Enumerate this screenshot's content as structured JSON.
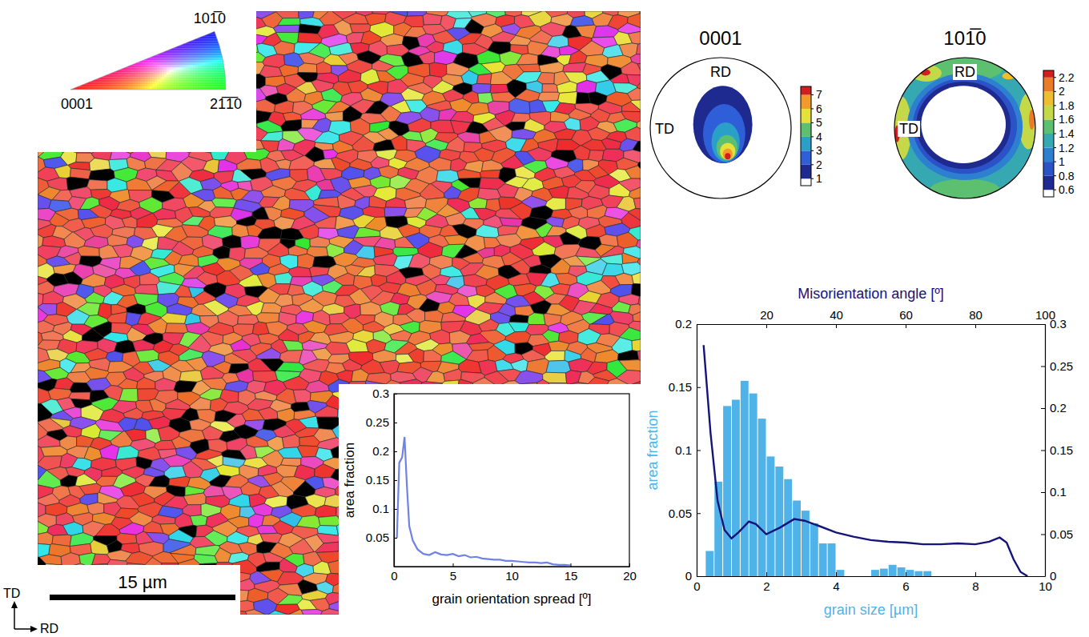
{
  "chart_data": [
    {
      "type": "orientation_map",
      "xlim": [
        0,
        48.7
      ],
      "scale_bar": {
        "value": 15,
        "label": "15 µm"
      },
      "axis_labels": [
        "TD",
        "RD"
      ],
      "color_key": [
        "101̅0",
        "0001",
        "21̅1̅0"
      ]
    },
    {
      "type": "line",
      "xlabel": "grain orientation spread [º]",
      "ylabel": "area fraction",
      "color": "#6f82e6",
      "x": [
        0.25,
        0.45,
        0.7,
        0.9,
        1.1,
        1.3,
        1.6,
        2,
        2.5,
        3,
        3.5,
        4,
        4.5,
        5,
        5.5,
        6,
        6.5,
        7,
        7.5,
        8,
        8.5,
        9,
        9.5,
        10,
        10.5,
        11,
        11.5,
        12,
        12.5,
        13,
        13.5,
        14,
        14.5,
        15
      ],
      "values": [
        0.05,
        0.18,
        0.19,
        0.225,
        0.14,
        0.07,
        0.045,
        0.03,
        0.022,
        0.02,
        0.025,
        0.021,
        0.02,
        0.022,
        0.018,
        0.02,
        0.016,
        0.017,
        0.014,
        0.013,
        0.012,
        0.012,
        0.01,
        0.01,
        0.009,
        0.008,
        0.007,
        0.007,
        0.006,
        0.007,
        0.004,
        0.003,
        0.003,
        0.002
      ],
      "xlim": [
        0,
        20
      ],
      "xticks": [
        0,
        5,
        10,
        15,
        20
      ],
      "ylim": [
        0,
        0.3
      ],
      "yticks": [
        0.05,
        0.1,
        0.15,
        0.2,
        0.25,
        0.3
      ]
    },
    {
      "type": "pole_figure",
      "title": "0001",
      "labels": [
        "RD",
        "TD"
      ],
      "contours": [
        {
          "level": 1,
          "cx": 0.03,
          "cy": 0.05,
          "rx": 0.42,
          "ry": 0.55
        },
        {
          "level": 2,
          "cx": 0.05,
          "cy": -0.08,
          "rx": 0.3,
          "ry": 0.42
        },
        {
          "level": 3,
          "cx": 0.07,
          "cy": -0.2,
          "rx": 0.2,
          "ry": 0.28
        },
        {
          "level": 4,
          "cx": 0.09,
          "cy": -0.28,
          "rx": 0.15,
          "ry": 0.18
        },
        {
          "level": 5,
          "cx": 0.1,
          "cy": -0.33,
          "rx": 0.11,
          "ry": 0.12
        },
        {
          "level": 6,
          "cx": 0.1,
          "cy": -0.37,
          "rx": 0.07,
          "ry": 0.08
        },
        {
          "level": 7,
          "cx": 0.1,
          "cy": -0.4,
          "rx": 0.04,
          "ry": 0.045
        }
      ],
      "colorbar": {
        "range": [
          0.5,
          7.6
        ],
        "ticks": [
          1,
          2,
          3,
          4,
          5,
          6,
          7
        ]
      }
    },
    {
      "type": "pole_figure",
      "title": "101̅0",
      "labels": [
        "RD",
        "TD"
      ],
      "contours": [
        {
          "level": 1.2,
          "cx": 0,
          "cy": 0,
          "rx": 1,
          "ry": 1
        },
        {
          "level": 1.4,
          "cx": 0,
          "cy": 0.86,
          "rx": 0.55,
          "ry": 0.2
        },
        {
          "level": 1.4,
          "cx": 0,
          "cy": -0.88,
          "rx": 0.5,
          "ry": 0.16
        },
        {
          "level": 1.6,
          "cx": -0.9,
          "cy": 0,
          "rx": 0.14,
          "ry": 0.45
        },
        {
          "level": 1.6,
          "cx": 0.9,
          "cy": 0.1,
          "rx": 0.14,
          "ry": 0.4
        },
        {
          "level": 1.6,
          "cx": -0.55,
          "cy": 0.78,
          "rx": 0.22,
          "ry": 0.12
        },
        {
          "level": 1,
          "cx": 0,
          "cy": 0.02,
          "rx": 0.82,
          "ry": 0.76
        },
        {
          "level": 0.8,
          "cx": 0,
          "cy": 0.03,
          "rx": 0.74,
          "ry": 0.68
        },
        {
          "level": 0.6,
          "cx": -0.02,
          "cy": 0.04,
          "rx": 0.67,
          "ry": 0.62
        },
        {
          "level": 0.5,
          "cx": -0.02,
          "cy": 0.05,
          "rx": 0.6,
          "ry": 0.55
        },
        {
          "level": 2.2,
          "cx": -0.56,
          "cy": 0.79,
          "rx": 0.07,
          "ry": 0.045
        },
        {
          "level": 2.2,
          "cx": -0.96,
          "cy": -0.08,
          "rx": 0.035,
          "ry": 0.12
        },
        {
          "level": 1.8,
          "cx": 0.62,
          "cy": 0.74,
          "rx": 0.09,
          "ry": 0.05
        },
        {
          "level": 2,
          "cx": 0.95,
          "cy": 0.12,
          "rx": 0.04,
          "ry": 0.14
        }
      ],
      "colorbar": {
        "range": [
          0.5,
          2.3
        ],
        "ticks": [
          0.6,
          0.8,
          1,
          1.2,
          1.4,
          1.6,
          1.8,
          2,
          2.2
        ]
      }
    },
    {
      "type": "histogram",
      "xlabel": "grain size [µm]",
      "ylabel": "area fraction",
      "color": "#4fb3ea",
      "bins": [
        0.25,
        0.5,
        0.75,
        1,
        1.25,
        1.5,
        1.75,
        2,
        2.25,
        2.5,
        2.75,
        3,
        3.25,
        3.5,
        3.75,
        4,
        4.25,
        4.5,
        4.75,
        5,
        5.25,
        5.5,
        5.75,
        6,
        6.25,
        6.5,
        6.75
      ],
      "values": [
        0.02,
        0.075,
        0.135,
        0.14,
        0.155,
        0.145,
        0.125,
        0.095,
        0.087,
        0.077,
        0.06,
        0.052,
        0.042,
        0.026,
        0.026,
        0.005,
        0,
        0,
        0,
        0.005,
        0.006,
        0.009,
        0.007,
        0.005,
        0.004,
        0.004
      ],
      "xlim": [
        0,
        10
      ],
      "xticks": [
        0,
        2,
        4,
        6,
        8,
        10
      ],
      "ylim": [
        0,
        0.2
      ],
      "yticks": [
        0,
        0.05,
        0.1,
        0.15,
        0.2
      ],
      "x2label": "Misorientation angle [º]",
      "x2lim": [
        0,
        100
      ],
      "x2ticks": [
        20,
        40,
        60,
        80,
        100
      ],
      "y2lim": [
        0,
        0.3
      ],
      "y2ticks": [
        0,
        0.05,
        0.1,
        0.15,
        0.2,
        0.25,
        0.3
      ],
      "series": [
        {
          "type": "line",
          "axis": "y2",
          "color": "#14147a",
          "x": [
            2,
            4,
            6,
            8,
            10,
            12,
            15,
            17,
            20,
            24,
            28,
            31,
            35,
            40,
            45,
            50,
            55,
            60,
            65,
            70,
            75,
            80,
            84,
            87,
            89,
            91,
            93,
            95
          ],
          "values": [
            0.275,
            0.17,
            0.09,
            0.055,
            0.045,
            0.052,
            0.065,
            0.062,
            0.05,
            0.058,
            0.068,
            0.066,
            0.06,
            0.052,
            0.047,
            0.043,
            0.041,
            0.04,
            0.038,
            0.038,
            0.039,
            0.038,
            0.041,
            0.046,
            0.04,
            0.02,
            0.005,
            0
          ]
        }
      ]
    }
  ]
}
